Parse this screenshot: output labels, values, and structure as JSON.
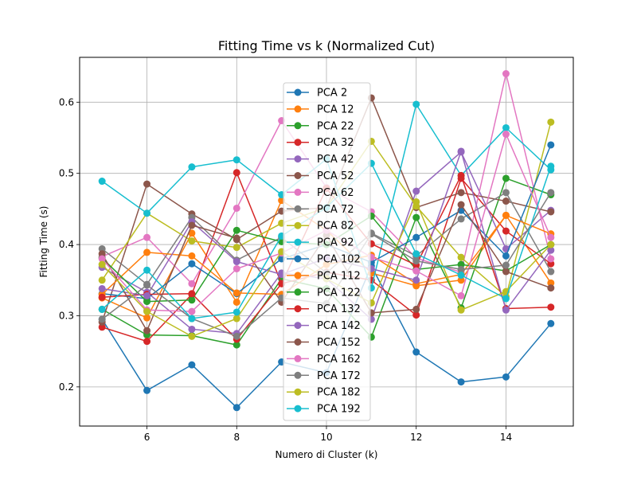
{
  "chart_data": {
    "type": "line",
    "title": "Fitting Time vs k (Normalized Cut)",
    "xlabel": "Numero di Cluster (k)",
    "ylabel": "Fitting Time (s)",
    "xlim": [
      4.5,
      15.5
    ],
    "ylim": [
      0.145,
      0.663
    ],
    "xticks": [
      6,
      8,
      10,
      12,
      14
    ],
    "yticks": [
      0.2,
      0.3,
      0.4,
      0.5,
      0.6
    ],
    "grid": true,
    "legend_position": "upper center",
    "x": [
      5,
      6,
      7,
      8,
      9,
      10,
      11,
      12,
      13,
      14,
      15
    ],
    "series": [
      {
        "name": "PCA 2",
        "color": "#1f77b4",
        "values": [
          0.295,
          0.195,
          0.231,
          0.171,
          0.235,
          0.22,
          0.37,
          0.249,
          0.207,
          0.214,
          0.289
        ]
      },
      {
        "name": "PCA 12",
        "color": "#ff7f0e",
        "values": [
          0.325,
          0.297,
          0.416,
          0.319,
          0.462,
          0.42,
          0.36,
          0.342,
          0.35,
          0.441,
          0.346
        ]
      },
      {
        "name": "PCA 22",
        "color": "#2ca02c",
        "values": [
          0.309,
          0.273,
          0.272,
          0.259,
          0.352,
          0.338,
          0.27,
          0.438,
          0.311,
          0.493,
          0.47
        ]
      },
      {
        "name": "PCA 32",
        "color": "#d62728",
        "values": [
          0.284,
          0.264,
          0.33,
          0.501,
          0.345,
          0.361,
          0.35,
          0.301,
          0.493,
          0.419,
          0.373
        ]
      },
      {
        "name": "PCA 42",
        "color": "#9467bd",
        "values": [
          0.368,
          0.333,
          0.281,
          0.275,
          0.36,
          0.352,
          0.295,
          0.475,
          0.53,
          0.394,
          0.448
        ]
      },
      {
        "name": "PCA 52",
        "color": "#8c564b",
        "values": [
          0.291,
          0.485,
          0.443,
          0.407,
          0.447,
          0.452,
          0.606,
          0.452,
          0.473,
          0.461,
          0.446
        ]
      },
      {
        "name": "PCA 62",
        "color": "#e377c2",
        "values": [
          0.383,
          0.41,
          0.345,
          0.451,
          0.574,
          0.48,
          0.446,
          0.381,
          0.361,
          0.64,
          0.38
        ]
      },
      {
        "name": "PCA 72",
        "color": "#7f7f7f",
        "values": [
          0.394,
          0.344,
          0.438,
          0.378,
          0.41,
          0.36,
          0.416,
          0.384,
          0.436,
          0.473,
          0.362
        ]
      },
      {
        "name": "PCA 82",
        "color": "#bcbd22",
        "values": [
          0.35,
          0.444,
          0.405,
          0.396,
          0.43,
          0.452,
          0.545,
          0.454,
          0.382,
          0.327,
          0.572
        ]
      },
      {
        "name": "PCA 92",
        "color": "#17becf",
        "values": [
          0.489,
          0.444,
          0.509,
          0.519,
          0.47,
          0.52,
          0.339,
          0.597,
          0.497,
          0.564,
          0.505
        ]
      },
      {
        "name": "PCA 102",
        "color": "#1f77b4",
        "values": [
          0.331,
          0.324,
          0.373,
          0.331,
          0.38,
          0.4,
          0.375,
          0.41,
          0.448,
          0.384,
          0.54
        ]
      },
      {
        "name": "PCA 112",
        "color": "#ff7f0e",
        "values": [
          0.33,
          0.389,
          0.384,
          0.332,
          0.33,
          0.372,
          0.385,
          0.345,
          0.358,
          0.441,
          0.415
        ]
      },
      {
        "name": "PCA 122",
        "color": "#2ca02c",
        "values": [
          0.381,
          0.32,
          0.322,
          0.42,
          0.404,
          0.4,
          0.44,
          0.365,
          0.372,
          0.363,
          0.4
        ]
      },
      {
        "name": "PCA 132",
        "color": "#d62728",
        "values": [
          0.326,
          0.33,
          0.331,
          0.267,
          0.345,
          0.479,
          0.401,
          0.371,
          0.497,
          0.31,
          0.312
        ]
      },
      {
        "name": "PCA 142",
        "color": "#9467bd",
        "values": [
          0.338,
          0.328,
          0.432,
          0.376,
          0.358,
          0.381,
          0.366,
          0.35,
          0.531,
          0.308,
          0.392
        ]
      },
      {
        "name": "PCA 152",
        "color": "#8c564b",
        "values": [
          0.387,
          0.279,
          0.427,
          0.409,
          0.319,
          0.413,
          0.304,
          0.309,
          0.456,
          0.362,
          0.339
        ]
      },
      {
        "name": "PCA 162",
        "color": "#e377c2",
        "values": [
          0.38,
          0.308,
          0.306,
          0.366,
          0.388,
          0.42,
          0.382,
          0.363,
          0.328,
          0.555,
          0.41
        ]
      },
      {
        "name": "PCA 172",
        "color": "#7f7f7f",
        "values": [
          0.295,
          0.343,
          0.296,
          0.271,
          0.325,
          0.317,
          0.415,
          0.377,
          0.365,
          0.371,
          0.473
        ]
      },
      {
        "name": "PCA 182",
        "color": "#bcbd22",
        "values": [
          0.372,
          0.306,
          0.271,
          0.296,
          0.39,
          0.352,
          0.318,
          0.46,
          0.308,
          0.334,
          0.4
        ]
      },
      {
        "name": "PCA 192",
        "color": "#17becf",
        "values": [
          0.309,
          0.364,
          0.296,
          0.305,
          0.412,
          0.452,
          0.514,
          0.387,
          0.357,
          0.324,
          0.51
        ]
      }
    ]
  }
}
